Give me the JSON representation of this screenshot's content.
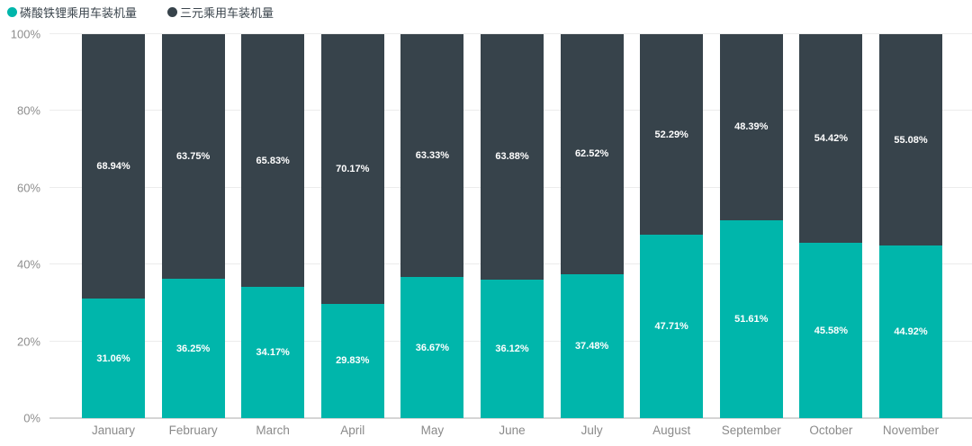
{
  "legend": [
    {
      "label": "磷酸铁锂乘用车装机量",
      "color": "#00B6AB"
    },
    {
      "label": "三元乘用车装机量",
      "color": "#37434B"
    }
  ],
  "chart_data": {
    "type": "bar",
    "subtype": "stacked-100-percent",
    "title": "",
    "xlabel": "",
    "ylabel": "",
    "unit": "%",
    "categories": [
      "January",
      "February",
      "March",
      "April",
      "May",
      "June",
      "July",
      "August",
      "September",
      "October",
      "November"
    ],
    "series": [
      {
        "name": "磷酸铁锂乘用车装机量",
        "color": "#00B6AB",
        "values": [
          31.06,
          36.25,
          34.17,
          29.83,
          36.67,
          36.12,
          37.48,
          47.71,
          51.61,
          45.58,
          44.92
        ]
      },
      {
        "name": "三元乘用车装机量",
        "color": "#37434B",
        "values": [
          68.94,
          63.75,
          65.83,
          70.17,
          63.33,
          63.88,
          62.52,
          52.29,
          48.39,
          54.42,
          55.08
        ]
      }
    ],
    "yticks": [
      "0%",
      "20%",
      "40%",
      "60%",
      "80%",
      "100%"
    ],
    "ylim": [
      0,
      100
    ],
    "grid": true,
    "legend_position": "top-left",
    "value_label_format": "0.00%",
    "colors": {
      "gridline": "#ECECEC",
      "axisline": "#D5D5D5",
      "tick_label": "#8E8E8E",
      "x_label": "#8A8A8A",
      "legend_text": "#3C464E",
      "value_label": "#FFFFFF",
      "background": "#FFFFFF"
    }
  }
}
